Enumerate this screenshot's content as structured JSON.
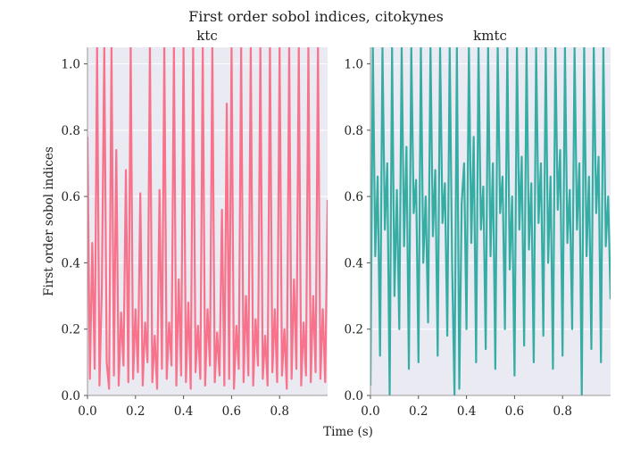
{
  "figure": {
    "title": "First order sobol indices, citokynes",
    "xlabel": "Time (s)",
    "ylabel": "First order sobol indices"
  },
  "colors": {
    "ktc": "#f7728a",
    "kmtc": "#36ada4",
    "plot_bg": "#eaeaf2",
    "grid": "#ffffff",
    "axis": "#999999"
  },
  "chart_data": [
    {
      "type": "line",
      "title": "ktc",
      "xlim": [
        0,
        1
      ],
      "ylim": [
        0,
        1.05
      ],
      "xticks": [
        0.0,
        0.2,
        0.4,
        0.6,
        0.8
      ],
      "xtick_labels": [
        "0.0",
        "0.2",
        "0.4",
        "0.6",
        "0.8"
      ],
      "yticks": [
        0.0,
        0.2,
        0.4,
        0.6,
        0.8,
        1.0
      ],
      "ytick_labels": [
        "0.0",
        "0.2",
        "0.4",
        "0.6",
        "0.8",
        "1.0"
      ],
      "grid": true,
      "series": [
        {
          "color": "#f7728a",
          "x": [
            0.0,
            0.01,
            0.02,
            0.03,
            0.04,
            0.05,
            0.06,
            0.07,
            0.08,
            0.09,
            0.1,
            0.11,
            0.12,
            0.13,
            0.14,
            0.15,
            0.16,
            0.17,
            0.18,
            0.19,
            0.2,
            0.21,
            0.22,
            0.23,
            0.24,
            0.25,
            0.26,
            0.27,
            0.28,
            0.29,
            0.3,
            0.31,
            0.32,
            0.33,
            0.34,
            0.35,
            0.36,
            0.37,
            0.38,
            0.39,
            0.4,
            0.41,
            0.42,
            0.43,
            0.44,
            0.45,
            0.46,
            0.47,
            0.48,
            0.49,
            0.5,
            0.51,
            0.52,
            0.53,
            0.54,
            0.55,
            0.56,
            0.57,
            0.58,
            0.59,
            0.6,
            0.61,
            0.62,
            0.63,
            0.64,
            0.65,
            0.66,
            0.67,
            0.68,
            0.69,
            0.7,
            0.71,
            0.72,
            0.73,
            0.74,
            0.75,
            0.76,
            0.77,
            0.78,
            0.79,
            0.8,
            0.81,
            0.82,
            0.83,
            0.84,
            0.85,
            0.86,
            0.87,
            0.88,
            0.89,
            0.9,
            0.91,
            0.92,
            0.93,
            0.94,
            0.95,
            0.96,
            0.97,
            0.98,
            0.99,
            1.0
          ],
          "y": [
            0.78,
            0.05,
            0.46,
            0.08,
            1.05,
            0.03,
            0.33,
            1.05,
            0.1,
            0.02,
            1.05,
            0.06,
            0.74,
            0.03,
            0.25,
            0.09,
            0.68,
            0.04,
            1.05,
            0.05,
            0.26,
            0.07,
            0.61,
            0.03,
            0.22,
            0.1,
            1.05,
            0.04,
            0.18,
            0.02,
            0.62,
            0.08,
            1.05,
            0.05,
            0.22,
            0.09,
            1.05,
            0.03,
            0.35,
            0.06,
            1.05,
            0.04,
            0.28,
            0.02,
            1.05,
            0.07,
            0.21,
            0.05,
            1.05,
            0.03,
            0.26,
            0.09,
            1.05,
            0.04,
            0.19,
            0.06,
            0.56,
            0.03,
            0.88,
            0.05,
            1.05,
            0.02,
            0.21,
            0.08,
            1.05,
            0.04,
            0.3,
            0.06,
            1.05,
            0.03,
            0.23,
            0.09,
            1.05,
            0.05,
            0.18,
            0.03,
            1.05,
            0.07,
            0.26,
            0.04,
            1.05,
            0.06,
            0.2,
            0.02,
            1.05,
            0.05,
            0.35,
            0.08,
            1.05,
            0.03,
            0.22,
            0.06,
            1.05,
            0.04,
            0.3,
            0.07,
            1.05,
            0.05,
            0.26,
            0.04,
            0.59
          ]
        }
      ]
    },
    {
      "type": "line",
      "title": "kmtc",
      "xlim": [
        0,
        1
      ],
      "ylim": [
        0,
        1.05
      ],
      "xticks": [
        0.0,
        0.2,
        0.4,
        0.6,
        0.8
      ],
      "xtick_labels": [
        "0.0",
        "0.2",
        "0.4",
        "0.6",
        "0.8"
      ],
      "yticks": [
        0.0,
        0.2,
        0.4,
        0.6,
        0.8,
        1.0
      ],
      "ytick_labels": [
        "0.0",
        "0.2",
        "0.4",
        "0.6",
        "0.8",
        "1.0"
      ],
      "grid": true,
      "series": [
        {
          "color": "#36ada4",
          "x": [
            0.0,
            0.01,
            0.02,
            0.03,
            0.04,
            0.05,
            0.06,
            0.07,
            0.08,
            0.09,
            0.1,
            0.11,
            0.12,
            0.13,
            0.14,
            0.15,
            0.16,
            0.17,
            0.18,
            0.19,
            0.2,
            0.21,
            0.22,
            0.23,
            0.24,
            0.25,
            0.26,
            0.27,
            0.28,
            0.29,
            0.3,
            0.31,
            0.32,
            0.33,
            0.34,
            0.35,
            0.36,
            0.37,
            0.38,
            0.39,
            0.4,
            0.41,
            0.42,
            0.43,
            0.44,
            0.45,
            0.46,
            0.47,
            0.48,
            0.49,
            0.5,
            0.51,
            0.52,
            0.53,
            0.54,
            0.55,
            0.56,
            0.57,
            0.58,
            0.59,
            0.6,
            0.61,
            0.62,
            0.63,
            0.64,
            0.65,
            0.66,
            0.67,
            0.68,
            0.69,
            0.7,
            0.71,
            0.72,
            0.73,
            0.74,
            0.75,
            0.76,
            0.77,
            0.78,
            0.79,
            0.8,
            0.81,
            0.82,
            0.83,
            0.84,
            0.85,
            0.86,
            0.87,
            0.88,
            0.89,
            0.9,
            0.91,
            0.92,
            0.93,
            0.94,
            0.95,
            0.96,
            0.97,
            0.98,
            0.99,
            1.0
          ],
          "y": [
            0.03,
            1.05,
            0.42,
            0.66,
            0.12,
            1.05,
            0.5,
            0.7,
            0.0,
            1.05,
            0.3,
            0.62,
            0.2,
            1.05,
            0.45,
            0.75,
            0.08,
            1.05,
            0.55,
            0.65,
            0.1,
            1.05,
            0.4,
            0.6,
            0.22,
            1.05,
            0.48,
            0.68,
            0.12,
            1.05,
            0.52,
            0.64,
            0.18,
            1.05,
            0.4,
            0.0,
            1.05,
            0.02,
            0.58,
            0.7,
            0.2,
            1.05,
            0.46,
            0.78,
            0.1,
            1.05,
            0.5,
            0.63,
            0.14,
            1.05,
            0.42,
            0.7,
            0.08,
            1.05,
            0.55,
            0.66,
            0.2,
            1.05,
            0.38,
            0.6,
            0.06,
            1.05,
            0.5,
            0.72,
            0.15,
            1.05,
            0.44,
            0.64,
            0.1,
            1.05,
            0.52,
            0.7,
            0.18,
            1.05,
            0.4,
            0.66,
            0.08,
            1.05,
            0.56,
            0.74,
            0.12,
            1.05,
            0.46,
            0.62,
            0.2,
            1.05,
            0.5,
            0.7,
            0.0,
            1.05,
            0.42,
            0.66,
            0.14,
            1.05,
            0.55,
            0.72,
            0.1,
            1.05,
            0.45,
            0.6,
            0.29
          ]
        }
      ]
    }
  ]
}
